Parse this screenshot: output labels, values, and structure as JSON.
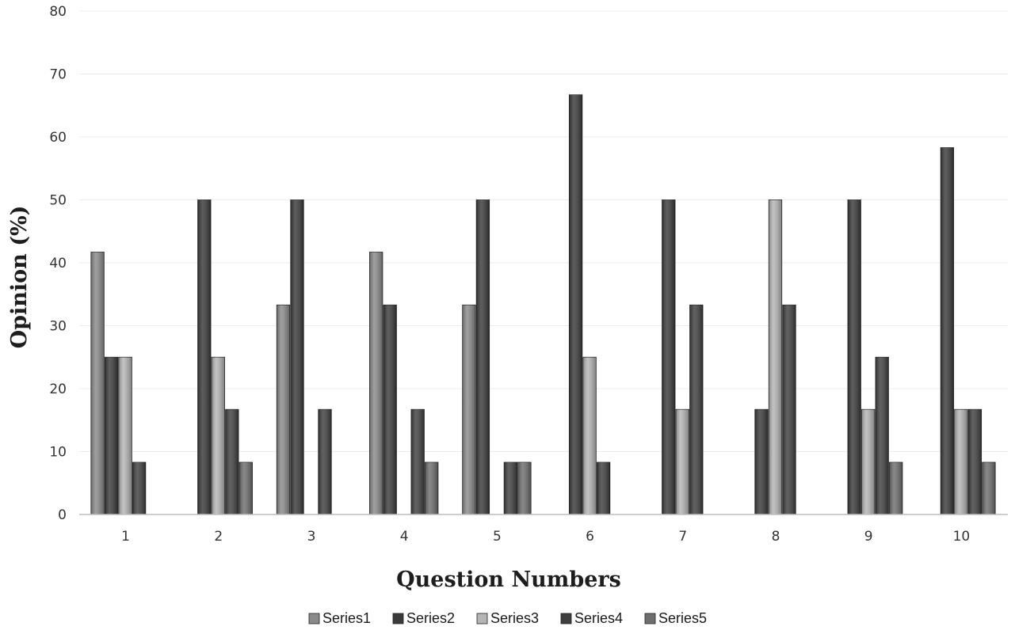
{
  "chart_data": {
    "type": "bar",
    "title": "",
    "xlabel": "Question Numbers",
    "ylabel": "Opinion (%)",
    "ylim": [
      0,
      80
    ],
    "yticks": [
      0,
      10,
      20,
      30,
      40,
      50,
      60,
      70,
      80
    ],
    "grid": true,
    "legend_position": "bottom",
    "categories": [
      "1",
      "2",
      "3",
      "4",
      "5",
      "6",
      "7",
      "8",
      "9",
      "10"
    ],
    "series": [
      {
        "name": "Series1",
        "color": "#8a8a8a",
        "values": [
          41.7,
          0,
          33.3,
          41.7,
          33.3,
          0,
          0,
          0,
          0,
          0
        ]
      },
      {
        "name": "Series2",
        "color": "#3a3a3a",
        "values": [
          25,
          50,
          50,
          33.3,
          50,
          66.7,
          50,
          16.7,
          50,
          58.3
        ]
      },
      {
        "name": "Series3",
        "color": "#b5b5b5",
        "values": [
          25,
          25,
          0,
          0,
          0,
          25,
          16.7,
          50,
          16.7,
          16.7
        ]
      },
      {
        "name": "Series4",
        "color": "#3f3f3f",
        "values": [
          8.3,
          16.7,
          16.7,
          16.7,
          8.3,
          8.3,
          33.3,
          33.3,
          25,
          16.7
        ]
      },
      {
        "name": "Series5",
        "color": "#6e6e6e",
        "values": [
          0,
          8.3,
          0,
          8.3,
          8.3,
          0,
          0,
          0,
          8.3,
          8.3
        ]
      }
    ]
  }
}
